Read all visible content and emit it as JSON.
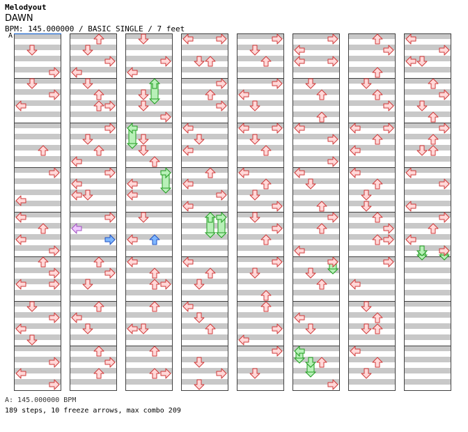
{
  "header": {
    "title": "Melodyout",
    "song": "DAWN",
    "meta": "BPM: 145.000000 / BASIC SINGLE / 7 feet",
    "bpm_marker": "A"
  },
  "footer": {
    "bpm_legend": "A: 145.000000 BPM",
    "stats": "189 steps, 10 freeze arrows, max combo 209"
  },
  "colors": {
    "stripe": "#c8c8c8",
    "border": "#404040",
    "arrow_fill": "#ffd8d8",
    "arrow_stroke": "#d03838",
    "freeze_fill": "#b8f0b8",
    "freeze_stroke": "#1f9c1f",
    "blue_fill": "#7fb7ff",
    "blue_stroke": "#2050c0",
    "purple_fill": "#f0c8ff",
    "purple_stroke": "#a050c0"
  },
  "chart_data": {
    "type": "step-chart",
    "columns": 8,
    "measures_per_column": 8,
    "lanes": [
      "left",
      "down",
      "up",
      "right"
    ],
    "note_units_per_measure": 16,
    "notes": [
      [
        0,
        0,
        1,
        6
      ],
      [
        0,
        0,
        3,
        14
      ],
      [
        0,
        1,
        1,
        2
      ],
      [
        0,
        1,
        3,
        6
      ],
      [
        0,
        1,
        0,
        10
      ],
      [
        0,
        2,
        2,
        10
      ],
      [
        0,
        3,
        3,
        2
      ],
      [
        0,
        3,
        0,
        12
      ],
      [
        0,
        4,
        0,
        2
      ],
      [
        0,
        4,
        2,
        6
      ],
      [
        0,
        4,
        0,
        10
      ],
      [
        0,
        4,
        3,
        14
      ],
      [
        0,
        5,
        2,
        2
      ],
      [
        0,
        5,
        3,
        6
      ],
      [
        0,
        5,
        0,
        10
      ],
      [
        0,
        5,
        3,
        10
      ],
      [
        0,
        6,
        1,
        2
      ],
      [
        0,
        6,
        3,
        6
      ],
      [
        0,
        6,
        0,
        10
      ],
      [
        0,
        6,
        1,
        14
      ],
      [
        0,
        7,
        3,
        6
      ],
      [
        0,
        7,
        0,
        10
      ],
      [
        0,
        7,
        3,
        14
      ],
      [
        1,
        0,
        2,
        2
      ],
      [
        1,
        0,
        1,
        6
      ],
      [
        1,
        0,
        3,
        10
      ],
      [
        1,
        0,
        0,
        14
      ],
      [
        1,
        1,
        1,
        2
      ],
      [
        1,
        1,
        2,
        6
      ],
      [
        1,
        1,
        2,
        10
      ],
      [
        1,
        1,
        3,
        10
      ],
      [
        1,
        2,
        3,
        2
      ],
      [
        1,
        2,
        1,
        6
      ],
      [
        1,
        2,
        2,
        10
      ],
      [
        1,
        2,
        0,
        14
      ],
      [
        1,
        3,
        3,
        2
      ],
      [
        1,
        3,
        0,
        6
      ],
      [
        1,
        3,
        0,
        10
      ],
      [
        1,
        3,
        1,
        10
      ],
      [
        1,
        4,
        3,
        2
      ],
      [
        1,
        4,
        0,
        6,
        "p"
      ],
      [
        1,
        4,
        3,
        10,
        "b"
      ],
      [
        1,
        5,
        2,
        2
      ],
      [
        1,
        5,
        3,
        6
      ],
      [
        1,
        5,
        1,
        10
      ],
      [
        1,
        6,
        2,
        2
      ],
      [
        1,
        6,
        0,
        6
      ],
      [
        1,
        6,
        1,
        10
      ],
      [
        1,
        7,
        2,
        2
      ],
      [
        1,
        7,
        3,
        6
      ],
      [
        1,
        7,
        2,
        10
      ],
      [
        2,
        0,
        1,
        2
      ],
      [
        2,
        0,
        3,
        10
      ],
      [
        2,
        0,
        0,
        14
      ],
      [
        2,
        1,
        1,
        6
      ],
      [
        2,
        1,
        1,
        10
      ],
      [
        2,
        1,
        3,
        14
      ],
      [
        2,
        2,
        1,
        6
      ],
      [
        2,
        2,
        1,
        10
      ],
      [
        2,
        2,
        2,
        14
      ],
      [
        2,
        3,
        0,
        6
      ],
      [
        2,
        3,
        0,
        10
      ],
      [
        2,
        4,
        1,
        2
      ],
      [
        2,
        4,
        0,
        10
      ],
      [
        2,
        4,
        2,
        10,
        "b"
      ],
      [
        2,
        5,
        0,
        2
      ],
      [
        2,
        5,
        2,
        6
      ],
      [
        2,
        5,
        2,
        10
      ],
      [
        2,
        5,
        3,
        10
      ],
      [
        2,
        6,
        2,
        2
      ],
      [
        2,
        6,
        0,
        10
      ],
      [
        2,
        6,
        1,
        10
      ],
      [
        2,
        7,
        2,
        2
      ],
      [
        2,
        7,
        2,
        10
      ],
      [
        2,
        7,
        3,
        10
      ],
      [
        3,
        0,
        0,
        2
      ],
      [
        3,
        0,
        3,
        2
      ],
      [
        3,
        0,
        1,
        10
      ],
      [
        3,
        0,
        2,
        10
      ],
      [
        3,
        1,
        3,
        2
      ],
      [
        3,
        1,
        2,
        6
      ],
      [
        3,
        1,
        3,
        10
      ],
      [
        3,
        2,
        0,
        2
      ],
      [
        3,
        2,
        1,
        6
      ],
      [
        3,
        2,
        0,
        10
      ],
      [
        3,
        3,
        2,
        2
      ],
      [
        3,
        3,
        0,
        6
      ],
      [
        3,
        3,
        3,
        10
      ],
      [
        3,
        3,
        0,
        14
      ],
      [
        3,
        5,
        0,
        2
      ],
      [
        3,
        5,
        2,
        6
      ],
      [
        3,
        5,
        1,
        10
      ],
      [
        3,
        6,
        0,
        2
      ],
      [
        3,
        6,
        1,
        6
      ],
      [
        3,
        6,
        2,
        10
      ],
      [
        3,
        7,
        1,
        6
      ],
      [
        3,
        7,
        3,
        10
      ],
      [
        3,
        7,
        1,
        14
      ],
      [
        4,
        0,
        3,
        2
      ],
      [
        4,
        0,
        1,
        6
      ],
      [
        4,
        0,
        2,
        10
      ],
      [
        4,
        1,
        3,
        2
      ],
      [
        4,
        1,
        0,
        6
      ],
      [
        4,
        1,
        1,
        10
      ],
      [
        4,
        2,
        0,
        2
      ],
      [
        4,
        2,
        3,
        2
      ],
      [
        4,
        2,
        1,
        6
      ],
      [
        4,
        2,
        2,
        10
      ],
      [
        4,
        3,
        0,
        2
      ],
      [
        4,
        3,
        2,
        6
      ],
      [
        4,
        3,
        1,
        10
      ],
      [
        4,
        3,
        3,
        14
      ],
      [
        4,
        4,
        1,
        2
      ],
      [
        4,
        4,
        3,
        6
      ],
      [
        4,
        4,
        2,
        10
      ],
      [
        4,
        5,
        3,
        2
      ],
      [
        4,
        5,
        1,
        6
      ],
      [
        4,
        5,
        2,
        14
      ],
      [
        4,
        6,
        2,
        2
      ],
      [
        4,
        6,
        3,
        10
      ],
      [
        4,
        6,
        0,
        14
      ],
      [
        4,
        7,
        3,
        2
      ],
      [
        4,
        7,
        1,
        10
      ],
      [
        5,
        0,
        3,
        2
      ],
      [
        5,
        0,
        0,
        6
      ],
      [
        5,
        0,
        0,
        10
      ],
      [
        5,
        0,
        3,
        10
      ],
      [
        5,
        1,
        1,
        2
      ],
      [
        5,
        1,
        2,
        6
      ],
      [
        5,
        1,
        2,
        14
      ],
      [
        5,
        2,
        0,
        2
      ],
      [
        5,
        2,
        3,
        6
      ],
      [
        5,
        2,
        3,
        14
      ],
      [
        5,
        3,
        0,
        2
      ],
      [
        5,
        3,
        1,
        6
      ],
      [
        5,
        3,
        2,
        14
      ],
      [
        5,
        4,
        3,
        2
      ],
      [
        5,
        4,
        2,
        6
      ],
      [
        5,
        4,
        0,
        14
      ],
      [
        5,
        5,
        3,
        2
      ],
      [
        5,
        5,
        1,
        6
      ],
      [
        5,
        5,
        2,
        10
      ],
      [
        5,
        6,
        0,
        6
      ],
      [
        5,
        6,
        1,
        10
      ],
      [
        5,
        7,
        2,
        6
      ],
      [
        5,
        7,
        3,
        14
      ],
      [
        6,
        0,
        2,
        2
      ],
      [
        6,
        0,
        3,
        6
      ],
      [
        6,
        0,
        2,
        14
      ],
      [
        6,
        1,
        1,
        2
      ],
      [
        6,
        1,
        2,
        6
      ],
      [
        6,
        1,
        3,
        10
      ],
      [
        6,
        2,
        0,
        2
      ],
      [
        6,
        2,
        3,
        2
      ],
      [
        6,
        2,
        2,
        6
      ],
      [
        6,
        2,
        0,
        10
      ],
      [
        6,
        3,
        0,
        2
      ],
      [
        6,
        3,
        2,
        6
      ],
      [
        6,
        3,
        1,
        10
      ],
      [
        6,
        3,
        1,
        14
      ],
      [
        6,
        4,
        2,
        2
      ],
      [
        6,
        4,
        3,
        6
      ],
      [
        6,
        4,
        2,
        10
      ],
      [
        6,
        4,
        3,
        10
      ],
      [
        6,
        5,
        3,
        2
      ],
      [
        6,
        5,
        0,
        10
      ],
      [
        6,
        6,
        1,
        2
      ],
      [
        6,
        6,
        2,
        6
      ],
      [
        6,
        6,
        1,
        10
      ],
      [
        6,
        6,
        2,
        10
      ],
      [
        6,
        7,
        0,
        2
      ],
      [
        6,
        7,
        2,
        6
      ],
      [
        6,
        7,
        1,
        10
      ],
      [
        7,
        0,
        0,
        2
      ],
      [
        7,
        0,
        3,
        6
      ],
      [
        7,
        0,
        0,
        10
      ],
      [
        7,
        0,
        1,
        10
      ],
      [
        7,
        1,
        2,
        2
      ],
      [
        7,
        1,
        3,
        6
      ],
      [
        7,
        1,
        1,
        10
      ],
      [
        7,
        1,
        2,
        14
      ],
      [
        7,
        2,
        3,
        2
      ],
      [
        7,
        2,
        2,
        6
      ],
      [
        7,
        2,
        1,
        10
      ],
      [
        7,
        2,
        2,
        10
      ],
      [
        7,
        3,
        0,
        2
      ],
      [
        7,
        3,
        3,
        6
      ],
      [
        7,
        3,
        0,
        14
      ],
      [
        7,
        4,
        3,
        2
      ],
      [
        7,
        4,
        2,
        6
      ],
      [
        7,
        4,
        0,
        10
      ],
      [
        7,
        4,
        3,
        14
      ]
    ],
    "freezes": [
      [
        2,
        1,
        2,
        2,
        6
      ],
      [
        2,
        2,
        0,
        2,
        6
      ],
      [
        2,
        3,
        3,
        2,
        6
      ],
      [
        3,
        4,
        2,
        2,
        6
      ],
      [
        3,
        4,
        3,
        2,
        6
      ],
      [
        5,
        5,
        3,
        2,
        3
      ],
      [
        5,
        7,
        0,
        2,
        3
      ],
      [
        5,
        7,
        1,
        6,
        4
      ],
      [
        7,
        4,
        1,
        14,
        2
      ],
      [
        7,
        4,
        3,
        14,
        2
      ]
    ]
  }
}
